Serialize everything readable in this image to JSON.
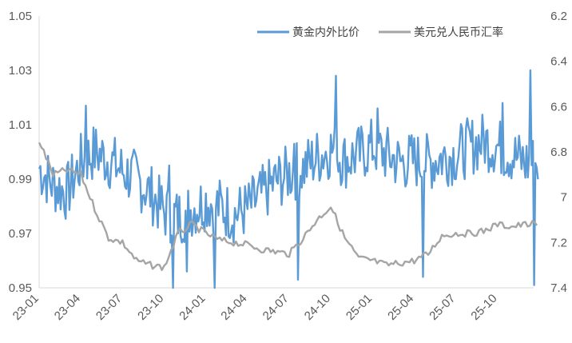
{
  "chart_data": {
    "type": "line",
    "series": [
      {
        "name": "黄金内外比价",
        "axis": "left",
        "color": "#5b9bd5",
        "x": [
          "23-01",
          "23-02",
          "23-03",
          "23-04",
          "23-05",
          "23-06",
          "23-07",
          "23-08",
          "23-09",
          "23-10",
          "23-11",
          "23-12",
          "24-01",
          "24-02",
          "24-03",
          "24-04",
          "24-05",
          "24-06",
          "24-07",
          "24-08",
          "24-09",
          "24-10",
          "24-11",
          "24-12",
          "25-01",
          "25-02",
          "25-03",
          "25-04",
          "25-05",
          "25-06",
          "25-07",
          "25-08",
          "25-09",
          "25-10",
          "25-11",
          "25-12"
        ],
        "values": [
          0.994,
          0.988,
          0.985,
          0.996,
          1.0,
          0.997,
          0.993,
          0.99,
          0.985,
          0.978,
          0.976,
          0.979,
          0.982,
          0.98,
          0.977,
          0.979,
          0.984,
          0.989,
          0.992,
          0.994,
          0.998,
          1.001,
          0.997,
          0.999,
          1.002,
          0.999,
          0.996,
          0.997,
          0.996,
          0.998,
          0.999,
          1.002,
          1.004,
          1.002,
          0.999,
          0.996
        ],
        "spikes_high": {
          "23-04": 1.017,
          "23-10": 0.995,
          "24-07": 1.003,
          "24-10": 1.028,
          "25-01": 1.016,
          "25-10": 1.018,
          "25-12": 1.03
        },
        "spikes_low": {
          "23-10": 0.95,
          "23-11": 0.956,
          "24-01": 0.95,
          "24-07": 0.953,
          "25-04": 0.954,
          "25-12": 0.951
        }
      },
      {
        "name": "美元兑人民币汇率",
        "axis": "right",
        "color": "#a5a5a5",
        "x": [
          "23-01",
          "23-02",
          "23-03",
          "23-04",
          "23-05",
          "23-06",
          "23-07",
          "23-08",
          "23-09",
          "23-10",
          "23-11",
          "23-12",
          "24-01",
          "24-02",
          "24-03",
          "24-04",
          "24-05",
          "24-06",
          "24-07",
          "24-08",
          "24-09",
          "24-10",
          "24-11",
          "24-12",
          "25-01",
          "25-02",
          "25-03",
          "25-04",
          "25-05",
          "25-06",
          "25-07",
          "25-08",
          "25-09",
          "25-10",
          "25-11",
          "25-12"
        ],
        "values": [
          6.75,
          6.9,
          6.88,
          6.9,
          7.05,
          7.18,
          7.2,
          7.28,
          7.3,
          7.31,
          7.16,
          7.12,
          7.16,
          7.19,
          7.2,
          7.21,
          7.23,
          7.24,
          7.25,
          7.18,
          7.1,
          7.04,
          7.18,
          7.27,
          7.28,
          7.3,
          7.29,
          7.28,
          7.25,
          7.17,
          7.16,
          7.16,
          7.15,
          7.12,
          7.13,
          7.12
        ]
      }
    ],
    "x_ticks": [
      "23-01",
      "23-04",
      "23-07",
      "23-10",
      "24-01",
      "24-04",
      "24-07",
      "24-10",
      "25-01",
      "25-04",
      "25-07",
      "25-10"
    ],
    "y_left": {
      "min": 0.95,
      "max": 1.05,
      "ticks": [
        "0.95",
        "0.97",
        "0.99",
        "1.01",
        "1.03",
        "1.05"
      ]
    },
    "y_right": {
      "min": 6.2,
      "max": 7.4,
      "inverted": true,
      "ticks": [
        "6.2",
        "6.4",
        "6.6",
        "6.8",
        "7",
        "7.2",
        "7.4"
      ]
    },
    "grid": false,
    "legend_position": "top-right"
  }
}
